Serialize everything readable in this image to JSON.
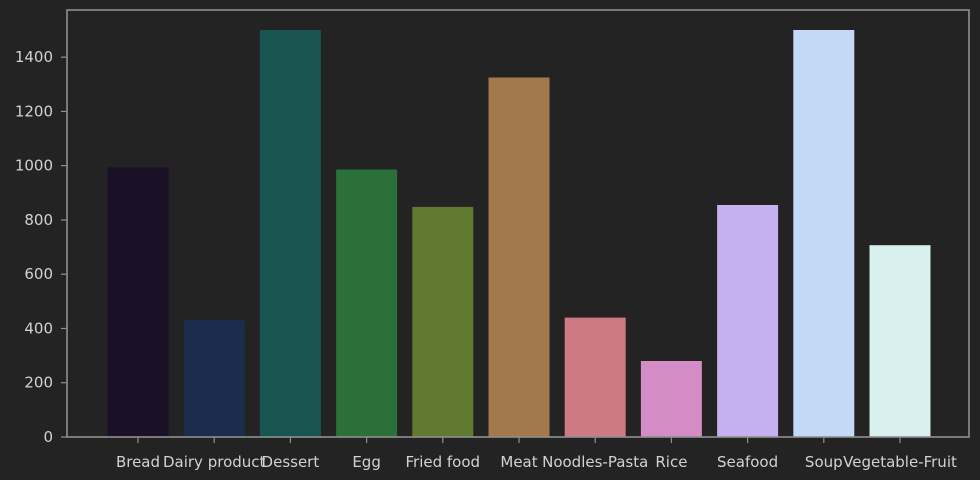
{
  "chart_data": {
    "type": "bar",
    "categories": [
      "Bread",
      "Dairy product",
      "Dessert",
      "Egg",
      "Fried food",
      "Meat",
      "Noodles-Pasta",
      "Rice",
      "Seafood",
      "Soup",
      "Vegetable-Fruit"
    ],
    "values": [
      994,
      431,
      1500,
      986,
      848,
      1325,
      440,
      280,
      855,
      1500,
      707
    ],
    "colors": [
      "#1a1127",
      "#1b2d4c",
      "#185550",
      "#2a7038",
      "#607a30",
      "#a3784b",
      "#cd7a84",
      "#d48cc6",
      "#c6b1ef",
      "#c4d9f5",
      "#d9f1ee"
    ],
    "title": "",
    "xlabel": "",
    "ylabel": "",
    "ylim": [
      0,
      1500
    ],
    "yticks": [
      0,
      200,
      400,
      600,
      800,
      1000,
      1200,
      1400
    ],
    "grid": false,
    "background": "#232323",
    "axis_color": "#8f8f8f",
    "text_color": "#d2d2d2"
  }
}
